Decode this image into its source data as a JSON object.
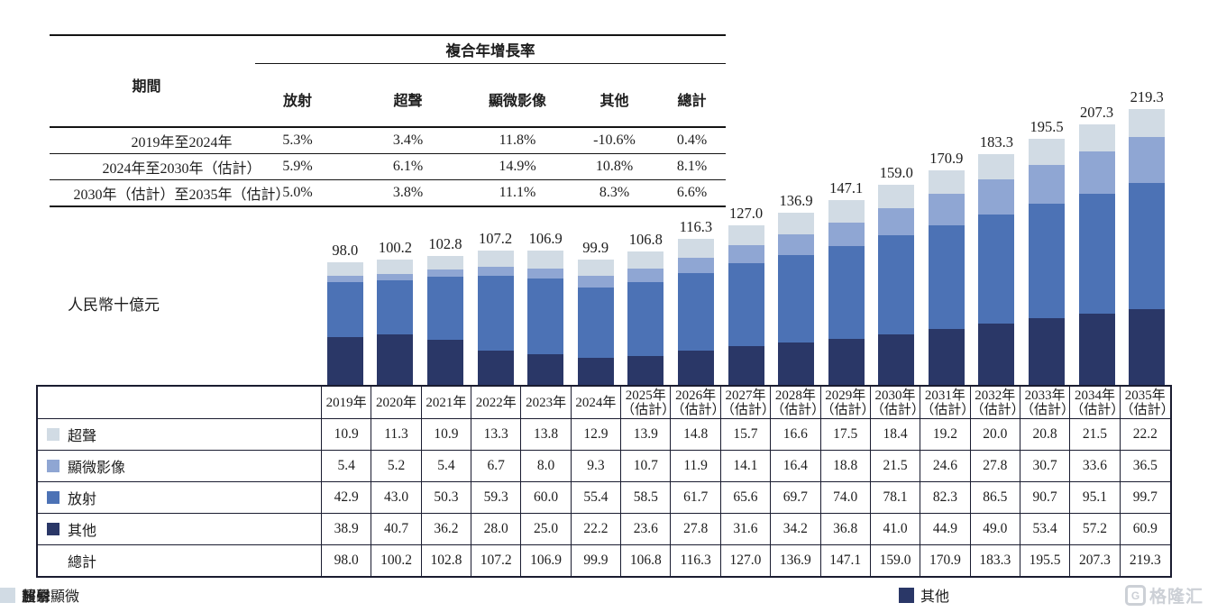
{
  "cagr_table": {
    "title": "複合年增長率",
    "period_header": "期間",
    "columns": [
      "放射",
      "超聲",
      "顯微影像",
      "其他",
      "總計"
    ],
    "rows": [
      {
        "period": "2019年至2024年",
        "values": [
          "5.3%",
          "3.4%",
          "11.8%",
          "-10.6%",
          "0.4%"
        ]
      },
      {
        "period": "2024年至2030年（估計）",
        "values": [
          "5.9%",
          "6.1%",
          "14.9%",
          "10.8%",
          "8.1%"
        ]
      },
      {
        "period": "2030年（估計）至2035年（估計）",
        "values": [
          "5.0%",
          "3.8%",
          "11.1%",
          "8.3%",
          "6.6%"
        ]
      }
    ]
  },
  "unit_label": "人民幣十億元",
  "chart_data": {
    "type": "bar",
    "stacked": true,
    "title": "",
    "ylabel": "人民幣十億元",
    "ylim": [
      0,
      230
    ],
    "grid": false,
    "legend_position": "bottom",
    "categories": [
      "2019年",
      "2020年",
      "2021年",
      "2022年",
      "2023年",
      "2024年",
      "2025年（估計）",
      "2026年（估計）",
      "2027年（估計）",
      "2028年（估計）",
      "2029年（估計）",
      "2030年（估計）",
      "2031年（估計）",
      "2032年（估計）",
      "2033年（估計）",
      "2034年（估計）",
      "2035年（估計）"
    ],
    "series": [
      {
        "name": "其他",
        "color": "#2A3767",
        "values": [
          38.9,
          40.7,
          36.2,
          28.0,
          25.0,
          22.2,
          23.6,
          27.8,
          31.6,
          34.2,
          36.8,
          41.0,
          44.9,
          49.0,
          53.4,
          57.2,
          60.9
        ]
      },
      {
        "name": "放射",
        "color": "#4C72B5",
        "values": [
          42.9,
          43.0,
          50.3,
          59.3,
          60.0,
          55.4,
          58.5,
          61.7,
          65.6,
          69.7,
          74.0,
          78.1,
          82.3,
          86.5,
          90.7,
          95.1,
          99.7
        ]
      },
      {
        "name": "醫學顯微",
        "color": "#8FA6D3",
        "values": [
          5.4,
          5.2,
          5.4,
          6.7,
          8.0,
          9.3,
          10.7,
          11.9,
          14.1,
          16.4,
          18.8,
          21.5,
          24.6,
          27.8,
          30.7,
          33.6,
          36.5
        ]
      },
      {
        "name": "超聲",
        "color": "#D1DBE4",
        "values": [
          10.9,
          11.3,
          10.9,
          13.3,
          13.8,
          12.9,
          13.9,
          14.8,
          15.7,
          16.6,
          17.5,
          18.4,
          19.2,
          20.0,
          20.8,
          21.5,
          22.2
        ]
      }
    ],
    "totals": [
      "98.0",
      "100.2",
      "102.8",
      "107.2",
      "106.9",
      "99.9",
      "106.8",
      "116.3",
      "127.0",
      "136.9",
      "147.1",
      "159.0",
      "170.9",
      "183.3",
      "195.5",
      "207.3",
      "219.3"
    ]
  },
  "bottom_table": {
    "years": [
      [
        "2019年"
      ],
      [
        "2020年"
      ],
      [
        "2021年"
      ],
      [
        "2022年"
      ],
      [
        "2023年"
      ],
      [
        "2024年"
      ],
      [
        "2025年",
        "（估計）"
      ],
      [
        "2026年",
        "（估計）"
      ],
      [
        "2027年",
        "（估計）"
      ],
      [
        "2028年",
        "（估計）"
      ],
      [
        "2029年",
        "（估計）"
      ],
      [
        "2030年",
        "（估計）"
      ],
      [
        "2031年",
        "（估計）"
      ],
      [
        "2032年",
        "（估計）"
      ],
      [
        "2033年",
        "（估計）"
      ],
      [
        "2034年",
        "（估計）"
      ],
      [
        "2035年",
        "（估計）"
      ]
    ],
    "rows": [
      {
        "label": "超聲",
        "swatch": "#D1DBE4",
        "values": [
          "10.9",
          "11.3",
          "10.9",
          "13.3",
          "13.8",
          "12.9",
          "13.9",
          "14.8",
          "15.7",
          "16.6",
          "17.5",
          "18.4",
          "19.2",
          "20.0",
          "20.8",
          "21.5",
          "22.2"
        ]
      },
      {
        "label": "顯微影像",
        "swatch": "#8FA6D3",
        "values": [
          "5.4",
          "5.2",
          "5.4",
          "6.7",
          "8.0",
          "9.3",
          "10.7",
          "11.9",
          "14.1",
          "16.4",
          "18.8",
          "21.5",
          "24.6",
          "27.8",
          "30.7",
          "33.6",
          "36.5"
        ]
      },
      {
        "label": "放射",
        "swatch": "#4C72B5",
        "values": [
          "42.9",
          "43.0",
          "50.3",
          "59.3",
          "60.0",
          "55.4",
          "58.5",
          "61.7",
          "65.6",
          "69.7",
          "74.0",
          "78.1",
          "82.3",
          "86.5",
          "90.7",
          "95.1",
          "99.7"
        ]
      },
      {
        "label": "其他",
        "swatch": "#2A3767",
        "values": [
          "38.9",
          "40.7",
          "36.2",
          "28.0",
          "25.0",
          "22.2",
          "23.6",
          "27.8",
          "31.6",
          "34.2",
          "36.8",
          "41.0",
          "44.9",
          "49.0",
          "53.4",
          "57.2",
          "60.9"
        ]
      },
      {
        "label": "總計",
        "swatch": null,
        "values": [
          "98.0",
          "100.2",
          "102.8",
          "107.2",
          "106.9",
          "99.9",
          "106.8",
          "116.3",
          "127.0",
          "136.9",
          "147.1",
          "159.0",
          "170.9",
          "183.3",
          "195.5",
          "207.3",
          "219.3"
        ]
      }
    ]
  },
  "legend": [
    {
      "label": "其他",
      "color": "#2A3767"
    },
    {
      "label": "放射",
      "color": "#4C72B5"
    },
    {
      "label": "醫學顯微",
      "color": "#8FA6D3"
    },
    {
      "label": "超聲",
      "color": "#D1DBE4"
    }
  ],
  "watermark": {
    "badge": "G",
    "text": "格隆汇"
  }
}
